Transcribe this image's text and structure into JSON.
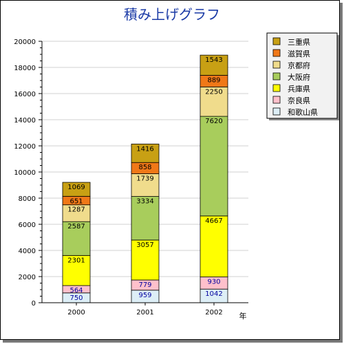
{
  "chart_data": {
    "type": "bar",
    "stacked": true,
    "title": "積み上げグラフ",
    "xlabel": "年",
    "ylabel": "",
    "categories": [
      "2000",
      "2001",
      "2002"
    ],
    "ylim": [
      0,
      20000
    ],
    "yticks": [
      0,
      2000,
      4000,
      6000,
      8000,
      10000,
      12000,
      14000,
      16000,
      18000,
      20000
    ],
    "legend_position": "top-right",
    "grid": true,
    "series": [
      {
        "name": "和歌山県",
        "values": [
          750,
          959,
          1042
        ],
        "color": "#ddeef6",
        "label_color": "#0000a0"
      },
      {
        "name": "奈良県",
        "values": [
          564,
          779,
          930
        ],
        "color": "#ffc0cb",
        "label_color": "#0000a0"
      },
      {
        "name": "兵庫県",
        "values": [
          2301,
          3057,
          4667
        ],
        "color": "#ffff00",
        "label_color": "#000000"
      },
      {
        "name": "大阪府",
        "values": [
          2587,
          3334,
          7620
        ],
        "color": "#a8cd5c",
        "label_color": "#000000"
      },
      {
        "name": "京都府",
        "values": [
          1287,
          1739,
          2250
        ],
        "color": "#f0dc8c",
        "label_color": "#000000"
      },
      {
        "name": "滋賀県",
        "values": [
          651,
          858,
          889
        ],
        "color": "#f07818",
        "label_color": "#000000"
      },
      {
        "name": "三重県",
        "values": [
          1069,
          1416,
          1543
        ],
        "color": "#c8a014",
        "label_color": "#000000"
      }
    ]
  }
}
